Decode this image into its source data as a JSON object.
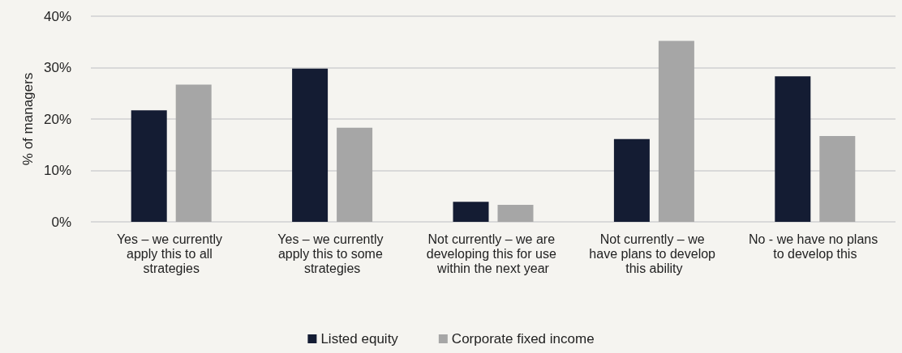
{
  "chart_data": {
    "type": "bar",
    "ylabel": "% of managers",
    "categories": [
      "Yes – we currently apply this to all strategies",
      "Yes – we currently apply this to some strategies",
      "Not currently – we are developing this for use within the next year",
      "Not currently – we have plans to develop this ability",
      "No - we have no plans to develop this"
    ],
    "series": [
      {
        "name": "Listed equity",
        "color": "#141c33",
        "values": [
          21.7,
          29.8,
          3.9,
          16.1,
          28.3
        ]
      },
      {
        "name": "Corporate fixed income",
        "color": "#a6a6a6",
        "values": [
          26.7,
          18.3,
          3.3,
          35.2,
          16.7
        ]
      }
    ],
    "ylim": [
      0,
      40
    ],
    "yticks": [
      {
        "value": 0,
        "label": "0%"
      },
      {
        "value": 10,
        "label": "10%"
      },
      {
        "value": 20,
        "label": "20%"
      },
      {
        "value": 30,
        "label": "30%"
      },
      {
        "value": 40,
        "label": "40%"
      }
    ],
    "grid": "y",
    "legend": "bottom"
  }
}
